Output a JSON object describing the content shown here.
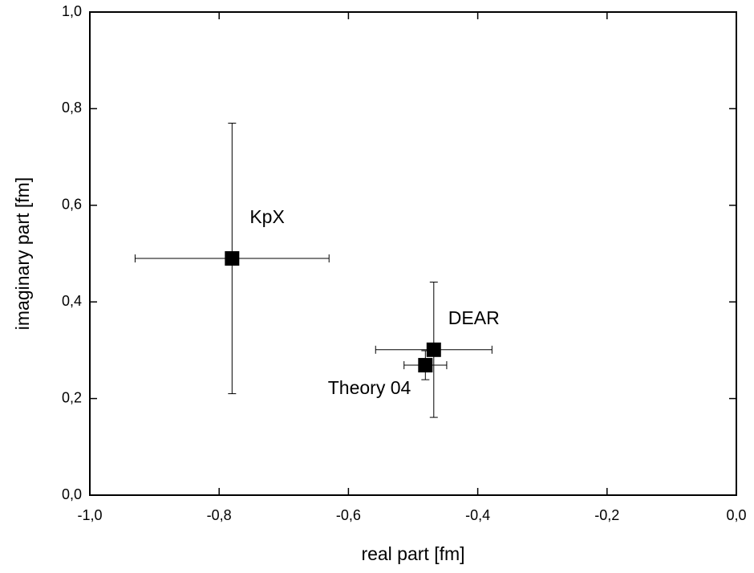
{
  "chart_data": {
    "type": "scatter",
    "xlabel": "real part  [fm]",
    "ylabel": "imaginary part  [fm]",
    "xlim": [
      -1.0,
      0.0
    ],
    "ylim": [
      0.0,
      1.0
    ],
    "xticks": [
      {
        "value": -1.0,
        "label": "-1,0"
      },
      {
        "value": -0.8,
        "label": "-0,8"
      },
      {
        "value": -0.6,
        "label": "-0,6"
      },
      {
        "value": -0.4,
        "label": "-0,4"
      },
      {
        "value": -0.2,
        "label": "-0,2"
      },
      {
        "value": 0.0,
        "label": "0,0"
      }
    ],
    "yticks": [
      {
        "value": 0.0,
        "label": "0,0"
      },
      {
        "value": 0.2,
        "label": "0,2"
      },
      {
        "value": 0.4,
        "label": "0,4"
      },
      {
        "value": 0.6,
        "label": "0,6"
      },
      {
        "value": 0.8,
        "label": "0,8"
      },
      {
        "value": 1.0,
        "label": "1,0"
      }
    ],
    "color": "#000000",
    "points": [
      {
        "label": "KpX",
        "x": -0.78,
        "y": 0.49,
        "xerr": 0.15,
        "yerr": 0.28
      },
      {
        "label": "DEAR",
        "x": -0.468,
        "y": 0.301,
        "xerr": 0.09,
        "yerr": 0.14
      },
      {
        "label": "Theory 04",
        "x": -0.481,
        "y": 0.269,
        "xerr": 0.033,
        "yerr": 0.03
      }
    ]
  }
}
